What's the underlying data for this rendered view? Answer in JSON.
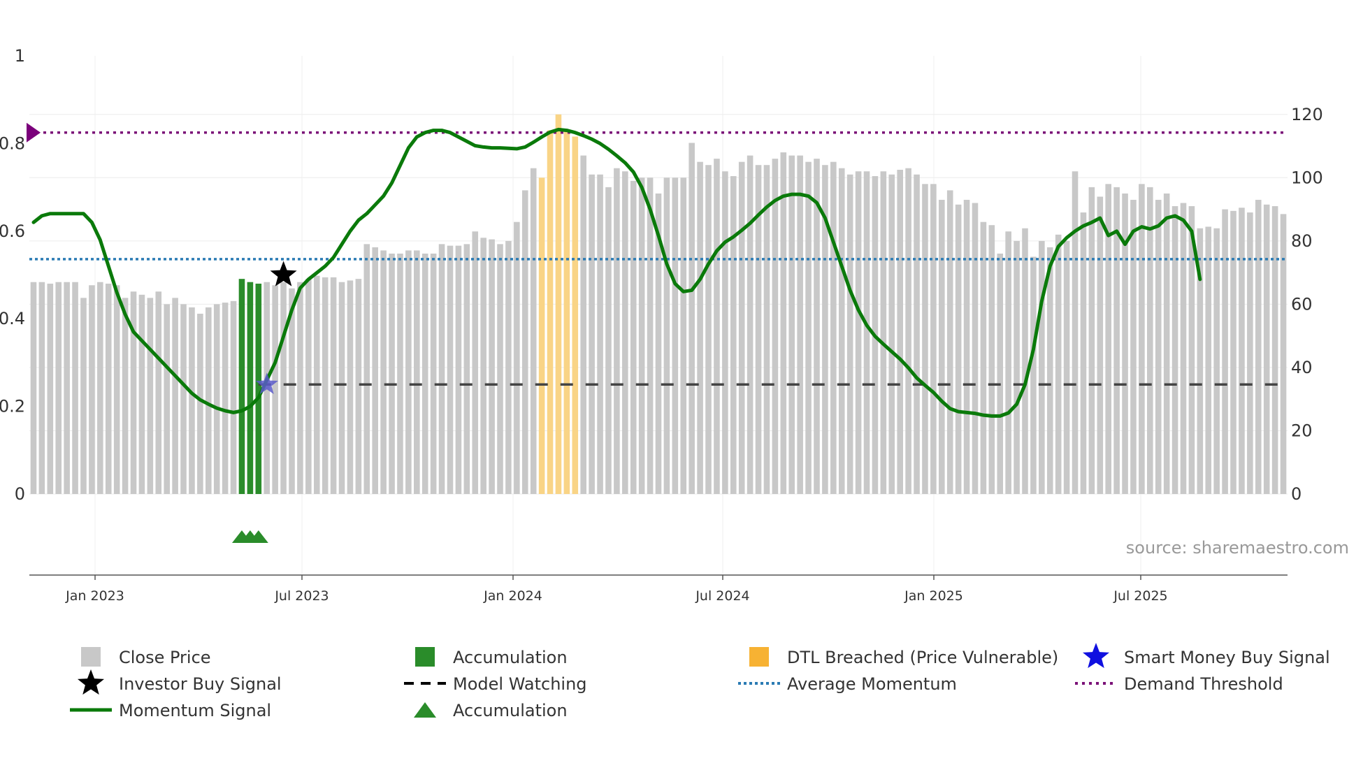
{
  "chart_data": {
    "type": "bar",
    "title": "",
    "source_text": "source: sharemaestro.com",
    "left_axis": {
      "ticks": [
        "0",
        "0.2",
        "0.4",
        "0.6",
        "0.8",
        "1"
      ],
      "range": [
        0,
        1
      ]
    },
    "right_axis": {
      "ticks": [
        "0",
        "20",
        "40",
        "60",
        "80",
        "100",
        "120"
      ],
      "range": [
        0,
        138.5
      ]
    },
    "x_axis": {
      "ticks": [
        "Jan 2023",
        "Jul 2023",
        "Jan 2024",
        "Jul 2024",
        "Jan 2025",
        "Jul 2025"
      ]
    },
    "close_price": [
      67,
      67,
      66.5,
      67,
      67,
      67,
      62,
      66,
      67,
      66.5,
      66,
      62,
      64,
      63,
      62,
      64,
      60,
      62,
      60,
      59,
      57,
      59,
      60,
      60.5,
      61,
      68,
      67,
      66.5,
      67,
      66,
      67,
      65,
      67,
      68,
      69,
      68.5,
      68.5,
      67,
      67.5,
      68,
      79,
      78,
      77,
      76,
      76,
      77,
      77,
      76,
      76,
      79,
      78.5,
      78.5,
      79,
      83,
      81,
      80.5,
      79,
      80,
      86,
      96,
      103,
      100,
      115,
      120,
      115,
      113,
      107,
      101,
      101,
      97,
      103,
      102,
      99,
      100,
      100,
      95,
      100,
      100,
      100,
      111,
      105,
      104,
      106,
      102,
      100.5,
      105,
      107,
      104,
      104,
      106,
      108,
      107,
      107,
      105,
      106,
      104,
      105,
      103,
      101,
      102,
      102,
      100.5,
      102,
      101,
      102.5,
      103,
      101,
      98,
      98,
      93,
      96,
      91.5,
      93,
      92,
      86,
      85,
      76,
      83,
      80,
      84,
      75,
      80,
      78,
      82,
      80,
      102,
      89,
      97,
      94,
      98,
      97,
      95,
      93,
      98,
      97,
      93,
      95,
      91,
      92,
      91,
      84,
      84.5,
      84,
      90,
      89.5,
      90.5,
      89,
      93,
      91.5,
      91,
      88.5
    ],
    "accumulation_bar_index": [
      25,
      26,
      27
    ],
    "dtl_breached_index": [
      61,
      62,
      63,
      64,
      65
    ],
    "accumulation_marker_index": [
      25,
      26,
      27
    ],
    "momentum_signal": [
      0.62,
      0.635,
      0.64,
      0.64,
      0.64,
      0.64,
      0.64,
      0.62,
      0.58,
      0.52,
      0.46,
      0.41,
      0.37,
      0.35,
      0.33,
      0.31,
      0.29,
      0.27,
      0.25,
      0.23,
      0.215,
      0.205,
      0.196,
      0.19,
      0.186,
      0.19,
      0.2,
      0.22,
      0.26,
      0.3,
      0.36,
      0.42,
      0.47,
      0.49,
      0.505,
      0.52,
      0.54,
      0.57,
      0.6,
      0.625,
      0.64,
      0.66,
      0.68,
      0.71,
      0.75,
      0.79,
      0.815,
      0.825,
      0.83,
      0.83,
      0.825,
      0.815,
      0.805,
      0.795,
      0.792,
      0.79,
      0.79,
      0.789,
      0.788,
      0.792,
      0.803,
      0.815,
      0.826,
      0.832,
      0.83,
      0.825,
      0.818,
      0.81,
      0.8,
      0.787,
      0.772,
      0.756,
      0.735,
      0.7,
      0.65,
      0.59,
      0.525,
      0.48,
      0.462,
      0.465,
      0.49,
      0.525,
      0.555,
      0.575,
      0.587,
      0.602,
      0.618,
      0.637,
      0.655,
      0.67,
      0.68,
      0.684,
      0.684,
      0.68,
      0.665,
      0.63,
      0.575,
      0.52,
      0.465,
      0.42,
      0.385,
      0.36,
      0.342,
      0.325,
      0.308,
      0.288,
      0.265,
      0.248,
      0.232,
      0.212,
      0.195,
      0.188,
      0.186,
      0.184,
      0.18,
      0.178,
      0.178,
      0.185,
      0.205,
      0.25,
      0.33,
      0.44,
      0.52,
      0.565,
      0.585,
      0.6,
      0.612,
      0.62,
      0.63,
      0.59,
      0.6,
      0.57,
      0.6,
      0.61,
      0.605,
      0.612,
      0.63,
      0.635,
      0.625,
      0.6,
      0.49
    ],
    "investor_buy_signal": {
      "index": 30,
      "value": 0.5
    },
    "smart_money_buy_signal": {
      "index": 28,
      "value": 0.25
    },
    "model_watching_level": 0.25,
    "average_momentum_level": 0.536,
    "demand_threshold_level": 0.825,
    "colors": {
      "close_price": "#c8c8c8",
      "accumulation": "#2a8c2a",
      "dtl_breached": "#f9d486",
      "momentum": "#0a7a0a",
      "average_momentum": "#2b7bb4",
      "demand_threshold": "#7b1278",
      "model_watching": "#444444",
      "investor_star": "#000000",
      "smart_money_star": "#5a5aca",
      "demand_marker": "#7b007b"
    },
    "legend": [
      {
        "label": "Close Price",
        "symbol": "square-gray"
      },
      {
        "label": "Accumulation",
        "symbol": "square-green"
      },
      {
        "label": "DTL Breached (Price Vulnerable)",
        "symbol": "square-orange"
      },
      {
        "label": "Smart Money Buy Signal",
        "symbol": "star-blue"
      },
      {
        "label": "Investor Buy Signal",
        "symbol": "star-black"
      },
      {
        "label": "Model Watching",
        "symbol": "dash-black"
      },
      {
        "label": "Average Momentum",
        "symbol": "dot-blue"
      },
      {
        "label": "Demand Threshold",
        "symbol": "dot-purple"
      },
      {
        "label": "Momentum Signal",
        "symbol": "line-green"
      },
      {
        "label": "Accumulation",
        "symbol": "triangle-green"
      }
    ]
  }
}
